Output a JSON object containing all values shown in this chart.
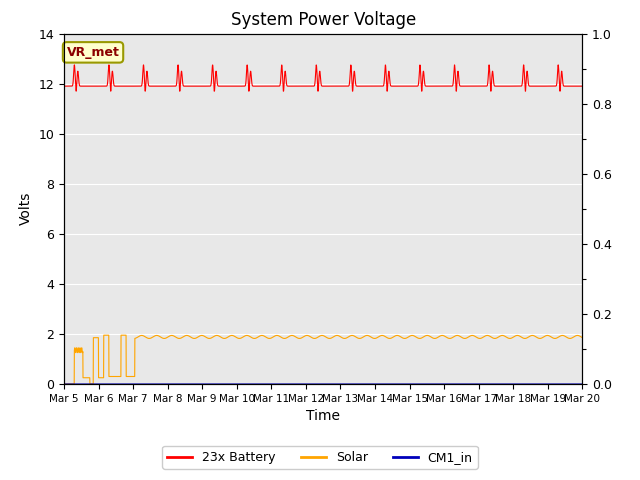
{
  "title": "System Power Voltage",
  "xlabel": "Time",
  "ylabel": "Volts",
  "bg_color": "#e8e8e8",
  "fig_color": "#ffffff",
  "left_ylim": [
    0,
    14
  ],
  "right_ylim": [
    0.0,
    1.0
  ],
  "left_yticks": [
    0,
    2,
    4,
    6,
    8,
    10,
    12,
    14
  ],
  "right_yticks": [
    0.0,
    0.2,
    0.4,
    0.6,
    0.8,
    1.0
  ],
  "battery_color": "#ff0000",
  "solar_color": "#ffa500",
  "cm1_color": "#0000bb",
  "legend_labels": [
    "23x Battery",
    "Solar",
    "CM1_in"
  ],
  "annotation_text": "VR_met",
  "title_fontsize": 12,
  "axis_fontsize": 10,
  "tick_fontsize": 9,
  "grid_color": "#ffffff",
  "grid_linewidth": 0.8
}
